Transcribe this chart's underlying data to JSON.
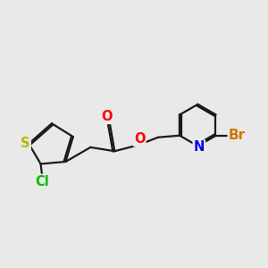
{
  "background_color": "#e9e9e9",
  "bond_color": "#1a1a1a",
  "bond_width": 1.6,
  "atom_colors": {
    "S": "#b8b800",
    "Cl": "#00bb00",
    "O": "#ff0000",
    "N": "#0000ee",
    "Br": "#cc7700"
  },
  "font_size": 10.5,
  "figsize": [
    3.0,
    3.0
  ],
  "dpi": 100
}
